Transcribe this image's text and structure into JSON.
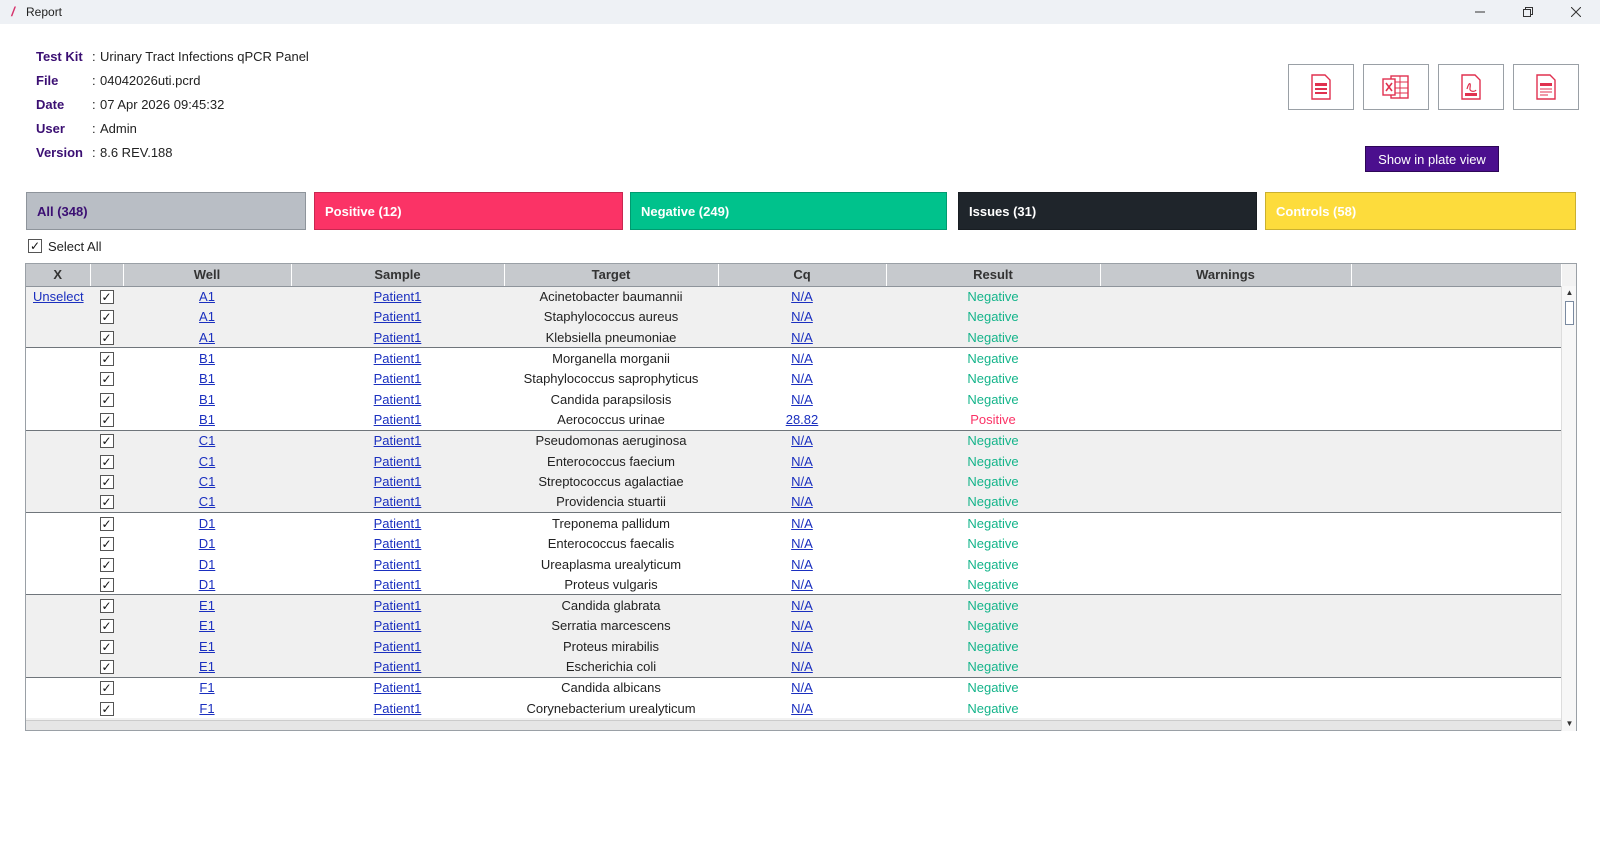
{
  "window": {
    "title": "Report"
  },
  "info": [
    {
      "key": "Test Kit",
      "value": "Urinary Tract Infections qPCR Panel"
    },
    {
      "key": "File",
      "value": "04042026uti.pcrd"
    },
    {
      "key": "Date",
      "value": "07 Apr 2026 09:45:32"
    },
    {
      "key": "User",
      "value": "Admin"
    },
    {
      "key": "Version",
      "value": "8.6 REV.188"
    }
  ],
  "actions": {
    "plate_view": "Show in plate view"
  },
  "filters": {
    "all": "All (348)",
    "positive": "Positive (12)",
    "negative": "Negative (249)",
    "issues": "Issues (31)",
    "controls": "Controls (58)"
  },
  "select_all": {
    "label": "Select All",
    "checked": true
  },
  "table": {
    "columns": [
      "X",
      "",
      "Well",
      "Sample",
      "Target",
      "Cq",
      "Result",
      "Warnings",
      ""
    ],
    "unselect_label": "Unselect",
    "rows": [
      {
        "well": "A1",
        "sample": "Patient1",
        "target": "Acinetobacter baumannii",
        "cq": "N/A",
        "result": "Negative"
      },
      {
        "well": "A1",
        "sample": "Patient1",
        "target": "Staphylococcus aureus",
        "cq": "N/A",
        "result": "Negative"
      },
      {
        "well": "A1",
        "sample": "Patient1",
        "target": "Klebsiella pneumoniae",
        "cq": "N/A",
        "result": "Negative"
      },
      {
        "well": "B1",
        "sample": "Patient1",
        "target": "Morganella morganii",
        "cq": "N/A",
        "result": "Negative"
      },
      {
        "well": "B1",
        "sample": "Patient1",
        "target": "Staphylococcus saprophyticus",
        "cq": "N/A",
        "result": "Negative"
      },
      {
        "well": "B1",
        "sample": "Patient1",
        "target": "Candida parapsilosis",
        "cq": "N/A",
        "result": "Negative"
      },
      {
        "well": "B1",
        "sample": "Patient1",
        "target": "Aerococcus urinae",
        "cq": "28.82",
        "result": "Positive"
      },
      {
        "well": "C1",
        "sample": "Patient1",
        "target": "Pseudomonas aeruginosa",
        "cq": "N/A",
        "result": "Negative"
      },
      {
        "well": "C1",
        "sample": "Patient1",
        "target": "Enterococcus faecium",
        "cq": "N/A",
        "result": "Negative"
      },
      {
        "well": "C1",
        "sample": "Patient1",
        "target": "Streptococcus agalactiae",
        "cq": "N/A",
        "result": "Negative"
      },
      {
        "well": "C1",
        "sample": "Patient1",
        "target": "Providencia stuartii",
        "cq": "N/A",
        "result": "Negative"
      },
      {
        "well": "D1",
        "sample": "Patient1",
        "target": "Treponema pallidum",
        "cq": "N/A",
        "result": "Negative"
      },
      {
        "well": "D1",
        "sample": "Patient1",
        "target": "Enterococcus faecalis",
        "cq": "N/A",
        "result": "Negative"
      },
      {
        "well": "D1",
        "sample": "Patient1",
        "target": "Ureaplasma urealyticum",
        "cq": "N/A",
        "result": "Negative"
      },
      {
        "well": "D1",
        "sample": "Patient1",
        "target": "Proteus vulgaris",
        "cq": "N/A",
        "result": "Negative"
      },
      {
        "well": "E1",
        "sample": "Patient1",
        "target": "Candida glabrata",
        "cq": "N/A",
        "result": "Negative"
      },
      {
        "well": "E1",
        "sample": "Patient1",
        "target": "Serratia marcescens",
        "cq": "N/A",
        "result": "Negative"
      },
      {
        "well": "E1",
        "sample": "Patient1",
        "target": "Proteus mirabilis",
        "cq": "N/A",
        "result": "Negative"
      },
      {
        "well": "E1",
        "sample": "Patient1",
        "target": "Escherichia coli",
        "cq": "N/A",
        "result": "Negative"
      },
      {
        "well": "F1",
        "sample": "Patient1",
        "target": "Candida albicans",
        "cq": "N/A",
        "result": "Negative"
      },
      {
        "well": "F1",
        "sample": "Patient1",
        "target": "Corynebacterium urealyticum",
        "cq": "N/A",
        "result": "Negative"
      }
    ]
  },
  "colors": {
    "accent_purple": "#4b0f8e",
    "positive": "#fb3366",
    "negative": "#00c28c",
    "issues": "#1f252b",
    "controls": "#fddc3c",
    "link": "#1a2fbf"
  },
  "icons": [
    "csv-export-icon",
    "excel-export-icon",
    "pdf-export-icon",
    "txt-export-icon"
  ]
}
